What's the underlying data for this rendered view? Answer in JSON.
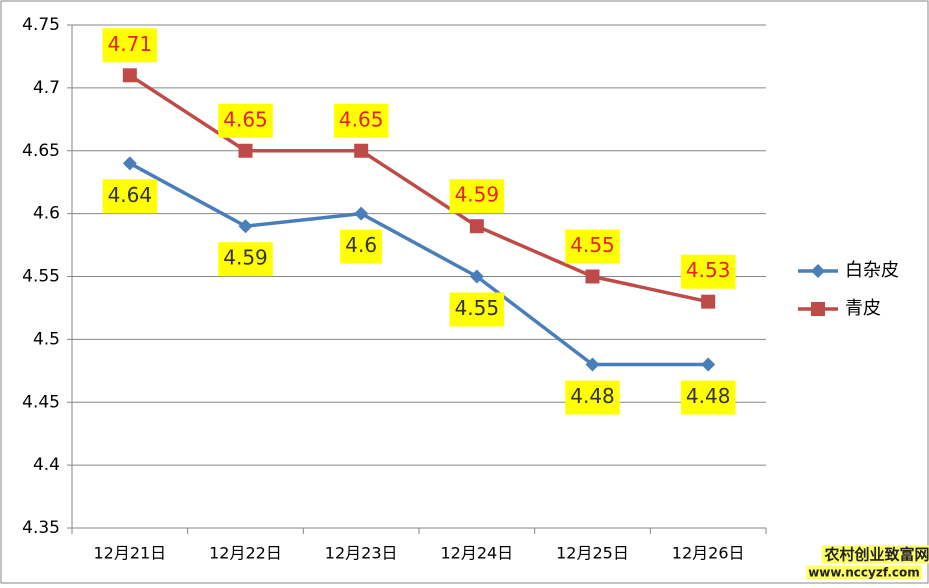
{
  "chart_data": {
    "type": "line",
    "categories": [
      "12月21日",
      "12月22日",
      "12月23日",
      "12月24日",
      "12月25日",
      "12月26日"
    ],
    "series": [
      {
        "name": "白杂皮",
        "color": "#4a7ebb",
        "marker": "diamond",
        "label_color": "#333333",
        "label_position": "below",
        "values": [
          4.64,
          4.59,
          4.6,
          4.55,
          4.48,
          4.48
        ]
      },
      {
        "name": "青皮",
        "color": "#be4b48",
        "marker": "square",
        "label_color": "#e8202a",
        "label_position": "above",
        "values": [
          4.71,
          4.65,
          4.65,
          4.59,
          4.55,
          4.53
        ]
      }
    ],
    "ylim": [
      4.35,
      4.75
    ],
    "yticks": [
      4.35,
      4.4,
      4.45,
      4.5,
      4.55,
      4.6,
      4.65,
      4.7,
      4.75
    ],
    "grid": true,
    "legend": "right",
    "label_background": "#ffff00",
    "annotations": [
      "农村创业致富网",
      "www.nccyzf.com"
    ]
  }
}
